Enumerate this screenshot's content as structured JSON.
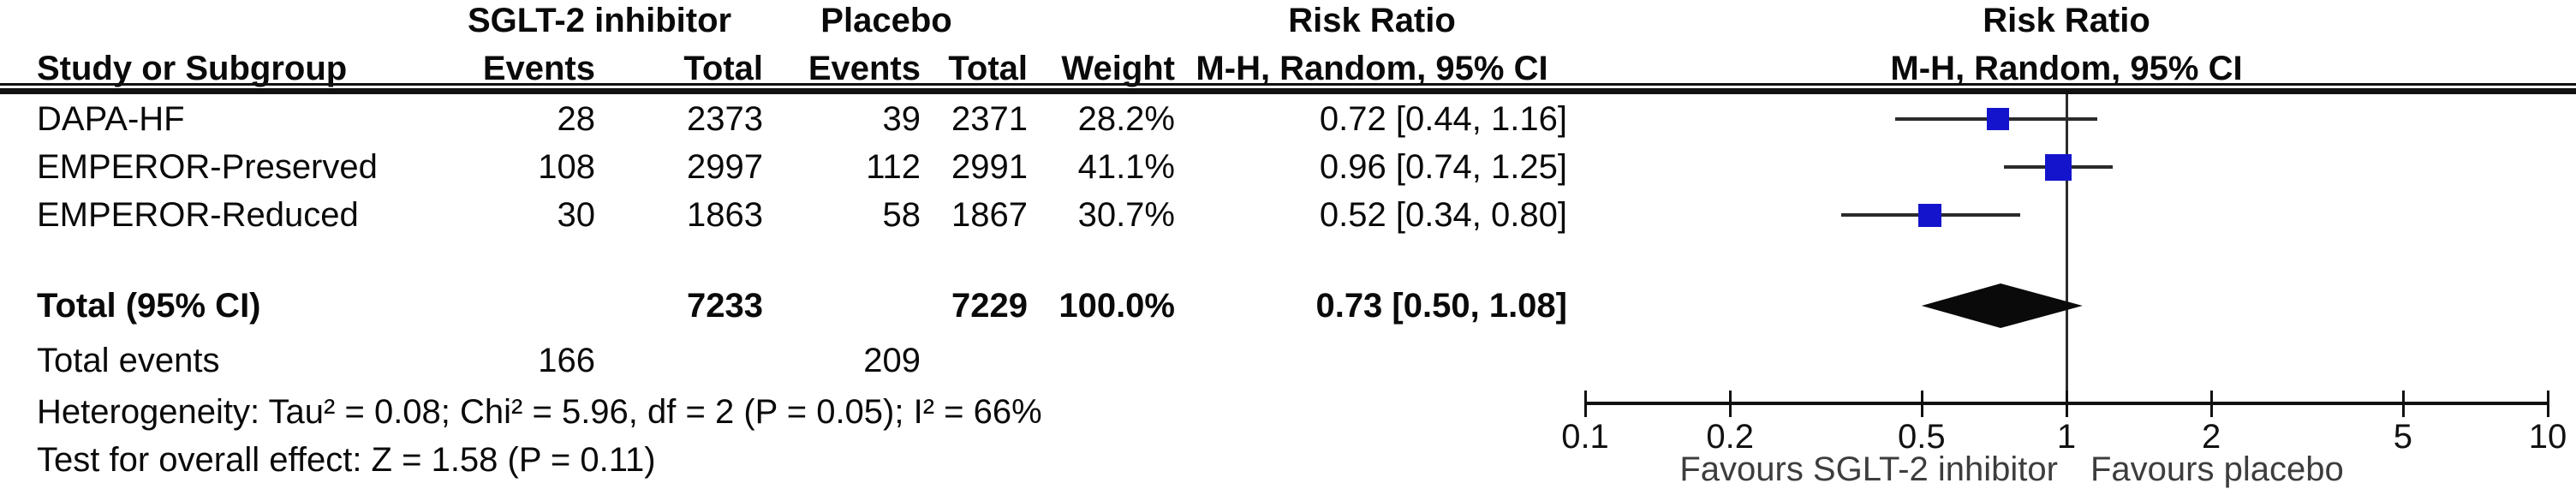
{
  "header": {
    "group_treatment": "SGLT-2 inhibitor",
    "group_control": "Placebo",
    "risk_ratio": "Risk Ratio",
    "study": "Study or Subgroup",
    "events": "Events",
    "total": "Total",
    "weight": "Weight",
    "method_ci": "M-H, Random, 95% CI"
  },
  "studies": [
    {
      "name": "DAPA-HF",
      "events_trt": "28",
      "total_trt": "2373",
      "events_ctl": "39",
      "total_ctl": "2371",
      "weight": "28.2%",
      "ci_text": "0.72 [0.44, 1.16]"
    },
    {
      "name": "EMPEROR-Preserved",
      "events_trt": "108",
      "total_trt": "2997",
      "events_ctl": "112",
      "total_ctl": "2991",
      "weight": "41.1%",
      "ci_text": "0.96 [0.74, 1.25]"
    },
    {
      "name": "EMPEROR-Reduced",
      "events_trt": "30",
      "total_trt": "1863",
      "events_ctl": "58",
      "total_ctl": "1867",
      "weight": "30.7%",
      "ci_text": "0.52 [0.34, 0.80]"
    }
  ],
  "totals": {
    "label": "Total (95% CI)",
    "total_trt": "7233",
    "total_ctl": "7229",
    "weight": "100.0%",
    "ci_text": "0.73 [0.50, 1.08]",
    "events_label": "Total events",
    "events_trt": "166",
    "events_ctl": "209"
  },
  "stats": {
    "heterogeneity": "Heterogeneity: Tau² = 0.08; Chi² = 5.96, df = 2 (P = 0.05); I² = 66%",
    "overall_effect": "Test for overall effect: Z = 1.58 (P = 0.11)"
  },
  "chart_data": {
    "type": "scatter",
    "subtype": "forest-plot",
    "title": "Risk Ratio, M-H, Random, 95% CI",
    "x_scale": "log10",
    "xlim": [
      0.1,
      10
    ],
    "x_ticks": [
      0.1,
      0.2,
      0.5,
      1,
      2,
      5,
      10
    ],
    "x_tick_labels": [
      "0.1",
      "0.2",
      "0.5",
      "1",
      "2",
      "5",
      "10"
    ],
    "favours_left": "Favours SGLT-2 inhibitor",
    "favours_right": "Favours placebo",
    "marker_color": "#1414cc",
    "line_color": "#2b2b2b",
    "diamond_color": "#0a0a0a",
    "series": [
      {
        "name": "DAPA-HF",
        "rr": 0.72,
        "ci_low": 0.44,
        "ci_high": 1.16,
        "weight_pct": 28.2
      },
      {
        "name": "EMPEROR-Preserved",
        "rr": 0.96,
        "ci_low": 0.74,
        "ci_high": 1.25,
        "weight_pct": 41.1
      },
      {
        "name": "EMPEROR-Reduced",
        "rr": 0.52,
        "ci_low": 0.34,
        "ci_high": 0.8,
        "weight_pct": 30.7
      }
    ],
    "summary": {
      "label": "Total (95% CI)",
      "rr": 0.73,
      "ci_low": 0.5,
      "ci_high": 1.08
    }
  }
}
